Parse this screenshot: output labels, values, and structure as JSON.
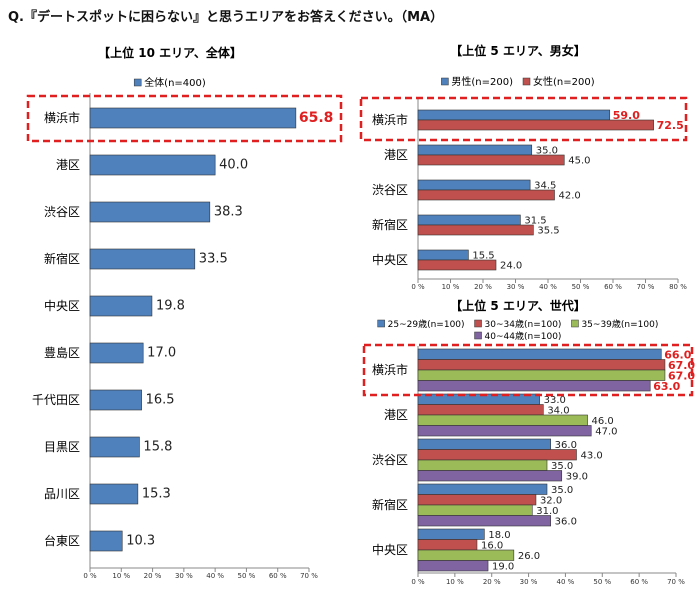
{
  "question": "Q.『デートスポットに困らない』と思うエリアをお答えください。（MA）",
  "colors": {
    "blue": "#4F81BD",
    "red": "#C0504D",
    "green": "#9BBB59",
    "purple": "#8064A2",
    "highlight": "#E02020"
  },
  "chart_data": [
    {
      "type": "bar",
      "orientation": "horizontal",
      "title": "【上位 10 エリア、全体】",
      "xlim": [
        0,
        70
      ],
      "xticks": [
        "0 %",
        "10 %",
        "20 %",
        "30 %",
        "40 %",
        "50 %",
        "60 %",
        "70 %"
      ],
      "categories": [
        "横浜市",
        "港区",
        "渋谷区",
        "新宿区",
        "中央区",
        "豊島区",
        "千代田区",
        "目黒区",
        "品川区",
        "台東区"
      ],
      "series": [
        {
          "name": "全体(n=400)",
          "color": "blue",
          "values": [
            65.8,
            40.0,
            38.3,
            33.5,
            19.8,
            17.0,
            16.5,
            15.8,
            15.3,
            10.3
          ]
        }
      ],
      "highlight": "横浜市"
    },
    {
      "type": "bar",
      "orientation": "horizontal",
      "title": "【上位 5 エリア、男女】",
      "xlim": [
        0,
        80
      ],
      "xticks": [
        "0 %",
        "10 %",
        "20 %",
        "30 %",
        "40 %",
        "50 %",
        "60 %",
        "70 %",
        "80 %"
      ],
      "categories": [
        "横浜市",
        "港区",
        "渋谷区",
        "新宿区",
        "中央区"
      ],
      "series": [
        {
          "name": "男性(n=200)",
          "color": "blue",
          "values": [
            59.0,
            35.0,
            34.5,
            31.5,
            15.5
          ]
        },
        {
          "name": "女性(n=200)",
          "color": "red",
          "values": [
            72.5,
            45.0,
            42.0,
            35.5,
            24.0
          ]
        }
      ],
      "highlight": "横浜市"
    },
    {
      "type": "bar",
      "orientation": "horizontal",
      "title": "【上位 5 エリア、世代】",
      "xlim": [
        0,
        70
      ],
      "xticks": [
        "0 %",
        "10 %",
        "20 %",
        "30 %",
        "40 %",
        "50 %",
        "60 %",
        "70 %"
      ],
      "categories": [
        "横浜市",
        "港区",
        "渋谷区",
        "新宿区",
        "中央区"
      ],
      "series": [
        {
          "name": "25~29歳(n=100)",
          "color": "blue",
          "values": [
            66.0,
            33.0,
            36.0,
            35.0,
            18.0
          ]
        },
        {
          "name": "30~34歳(n=100)",
          "color": "red",
          "values": [
            67.0,
            34.0,
            43.0,
            32.0,
            16.0
          ]
        },
        {
          "name": "35~39歳(n=100)",
          "color": "green",
          "values": [
            67.0,
            46.0,
            35.0,
            31.0,
            26.0
          ]
        },
        {
          "name": "40~44歳(n=100)",
          "color": "purple",
          "values": [
            63.0,
            47.0,
            39.0,
            36.0,
            19.0
          ]
        }
      ],
      "highlight": "横浜市"
    }
  ]
}
